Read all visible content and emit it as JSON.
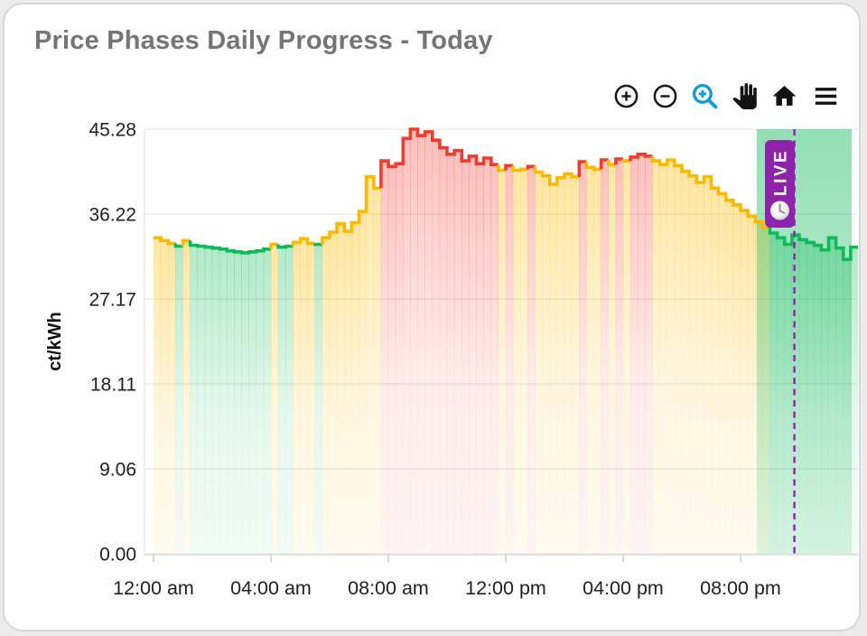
{
  "card": {
    "title": "Price Phases Daily Progress - Today"
  },
  "toolbar": {
    "tools": [
      "zoom-in",
      "zoom-out",
      "selection-zoom",
      "pan",
      "home",
      "menu"
    ],
    "active_tool": "selection-zoom",
    "active_color": "#0D9BE0",
    "icon_color": "#1b1b1b"
  },
  "chart_data": {
    "type": "area-step",
    "title": "Price Phases Daily Progress - Today",
    "xlabel": "",
    "ylabel": "ct/kWh",
    "unit": "ct/kWh",
    "ylim": [
      0,
      45.28
    ],
    "yticks": [
      "0.00",
      "9.06",
      "18.11",
      "27.17",
      "36.22",
      "45.28"
    ],
    "xticks": [
      {
        "label": "12:00 am",
        "hour": 0
      },
      {
        "label": "04:00 am",
        "hour": 4
      },
      {
        "label": "08:00 am",
        "hour": 8
      },
      {
        "label": "12:00 pm",
        "hour": 12
      },
      {
        "label": "04:00 pm",
        "hour": 16
      },
      {
        "label": "08:00 pm",
        "hour": 20
      }
    ],
    "grid": "horizontal",
    "start_time": "00:00",
    "interval_min": 15,
    "values": [
      33.7,
      33.4,
      33.1,
      32.8,
      33.4,
      32.9,
      32.8,
      32.7,
      32.6,
      32.5,
      32.3,
      32.2,
      32.1,
      32.2,
      32.3,
      32.5,
      33.0,
      32.7,
      32.8,
      33.2,
      33.6,
      33.1,
      33.0,
      33.7,
      34.3,
      35.2,
      34.4,
      35.3,
      36.5,
      40.2,
      39.0,
      41.9,
      41.3,
      41.6,
      44.3,
      45.28,
      44.6,
      45.0,
      44.1,
      43.3,
      42.6,
      43.0,
      41.9,
      42.4,
      41.6,
      42.2,
      41.5,
      40.9,
      41.4,
      40.9,
      41.0,
      41.3,
      40.7,
      40.3,
      39.4,
      40.1,
      40.5,
      40.2,
      41.8,
      41.2,
      41.0,
      42.0,
      41.5,
      42.1,
      41.9,
      42.3,
      42.6,
      42.4,
      41.9,
      41.5,
      42.0,
      41.4,
      40.8,
      40.3,
      39.6,
      40.2,
      39.0,
      38.4,
      37.7,
      37.2,
      36.6,
      36.0,
      35.4,
      34.8,
      34.2,
      33.7,
      33.0,
      34.0,
      33.5,
      33.2,
      32.9,
      32.4,
      33.7,
      32.6,
      31.4,
      32.7
    ],
    "phases": [
      "yyyg",
      "yggg",
      "gggg",
      "gggg",
      "yggy",
      "yygy",
      "yyyy",
      "yyyr",
      "rrrr",
      "rrrr",
      "rrrr",
      "rrry",
      "ryyr",
      "yyyy",
      "yyry",
      "yryr",
      "yrrr",
      "yyyy",
      "yyyy",
      "yyyy",
      "yyyy",
      "gggg",
      "gggg",
      "gggg"
    ],
    "phase_colors": {
      "green": "#10B95A",
      "yellow": "#FCB900",
      "red": "#F23B30"
    },
    "live": {
      "label": "LIVE",
      "badge_color": "#8E24AA",
      "line_time": "21:50",
      "line_style": "dashed"
    },
    "future_band": {
      "start": "20:33",
      "end": "23:47",
      "color": "#10B95A"
    }
  }
}
